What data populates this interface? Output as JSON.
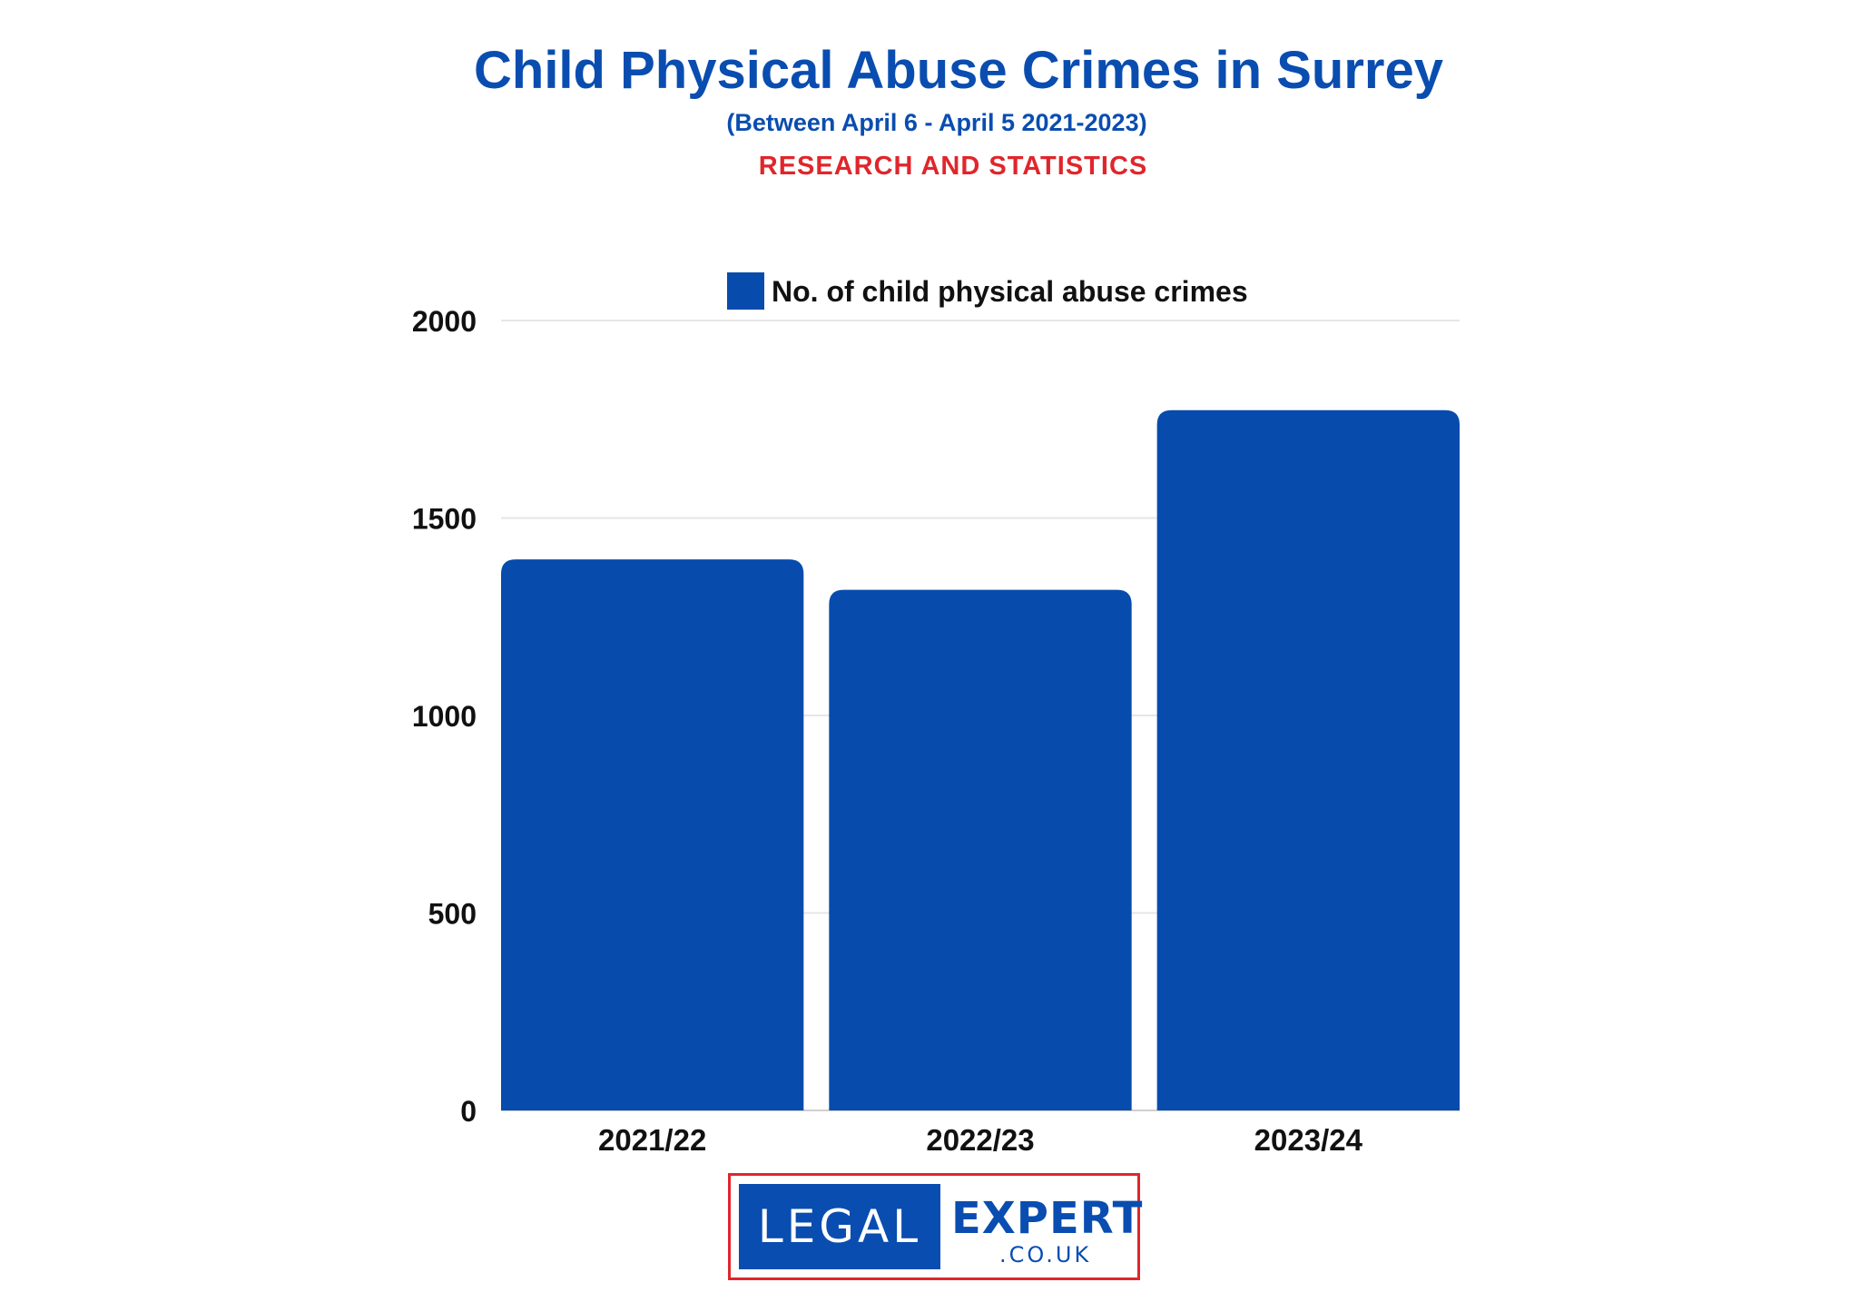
{
  "header": {
    "title": "Child Physical Abuse Crimes in Surrey",
    "subtitle": "(Between April 6 - April 5 2021-2023)",
    "tagline": "RESEARCH AND STATISTICS"
  },
  "logo": {
    "left_text": "LEGAL",
    "right_text": "EXPERT",
    "right_sub": ".CO.UK"
  },
  "colors": {
    "bar": "#074bad",
    "title": "#0a4db0",
    "tagline": "#e0262b",
    "grid": "#e6e6e6"
  },
  "chart_data": {
    "type": "bar",
    "categories": [
      "2021/22",
      "2022/23",
      "2023/24"
    ],
    "series": [
      {
        "name": "No. of child physical abuse crimes",
        "values": [
          1395,
          1318,
          1773
        ]
      }
    ],
    "yticks": [
      "0",
      "500",
      "1000",
      "1500",
      "2000"
    ],
    "ylim": [
      0,
      2000
    ],
    "legend_position": "top-center",
    "grid": true
  }
}
